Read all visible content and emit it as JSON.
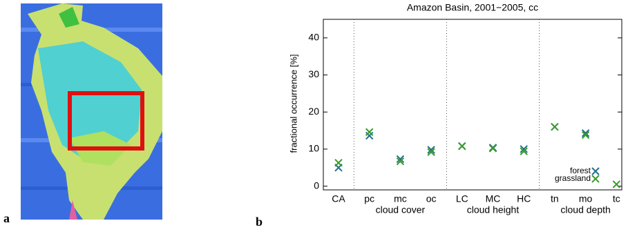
{
  "panel_labels": [
    "a",
    "b"
  ],
  "chart_data": {
    "type": "scatter",
    "title": "Amazon Basin, 2001−2005, cc",
    "y_label": "fractional occurrence [%]",
    "categories": [
      "CA",
      "pc",
      "mc",
      "oc",
      "LC",
      "MC",
      "HC",
      "tn",
      "mo",
      "tc"
    ],
    "group_labels": [
      "cloud cover",
      "cloud height",
      "cloud depth"
    ],
    "series": [
      {
        "name": "forest",
        "color": "#1f6f8b",
        "values": [
          5.0,
          13.6,
          7.3,
          9.8,
          10.8,
          10.4,
          10.0,
          16.0,
          14.3,
          null
        ]
      },
      {
        "name": "grassland",
        "color": "#3a9a2a",
        "values": [
          6.3,
          14.6,
          6.7,
          9.2,
          10.8,
          10.2,
          9.4,
          16.0,
          13.8,
          0.5
        ]
      }
    ],
    "ylim": [
      -1,
      45
    ],
    "yticks": [
      0,
      10,
      20,
      30,
      40
    ]
  }
}
